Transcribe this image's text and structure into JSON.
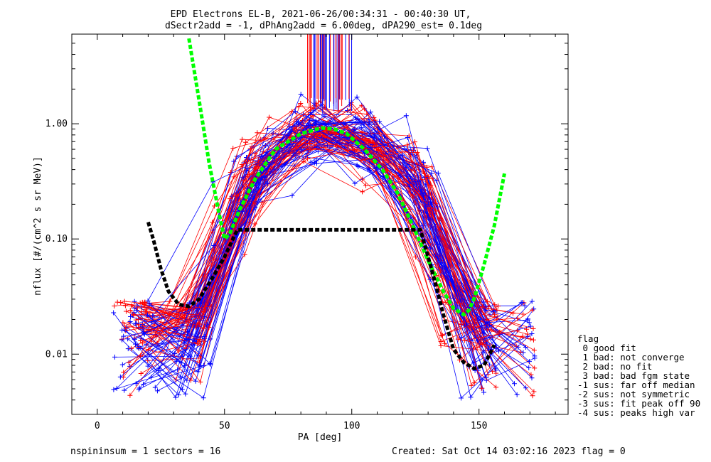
{
  "chart_data": {
    "type": "scatter",
    "title": "EPD Electrons EL-B, 2021-06-26/00:34:31 - 00:40:30 UT,",
    "subtitle": "dSectr2add = -1, dPhAng2add = 6.00deg, dPA290_est=   0.1deg",
    "xlabel": "PA [deg]",
    "ylabel": "nflux [#/(cm^2 s sr MeV)]",
    "xlim": [
      -10,
      185
    ],
    "ylim": [
      0.003,
      6
    ],
    "yscale": "log",
    "x_ticks": [
      "0",
      "50",
      "100",
      "150"
    ],
    "x_tick_values": [
      0,
      50,
      100,
      150
    ],
    "y_ticks": [
      "0.01",
      "0.10",
      "1.00"
    ],
    "y_tick_values": [
      0.01,
      0.1,
      1.0
    ],
    "series": [
      {
        "color": "#00ff00",
        "style": "dashed-thick",
        "x": [
          36,
          40,
          44,
          48,
          50,
          52,
          56,
          62,
          70,
          80,
          88,
          93,
          98,
          105,
          112,
          118,
          124,
          130,
          136,
          140,
          144,
          146,
          148,
          150,
          152,
          156,
          160
        ],
        "y": [
          5.5,
          1.6,
          0.45,
          0.16,
          0.1,
          0.11,
          0.18,
          0.33,
          0.6,
          0.82,
          0.92,
          0.9,
          0.82,
          0.6,
          0.4,
          0.25,
          0.13,
          0.065,
          0.035,
          0.025,
          0.022,
          0.024,
          0.03,
          0.042,
          0.06,
          0.13,
          0.37
        ]
      },
      {
        "color": "#000000",
        "style": "dashed-thick",
        "x": [
          20,
          22,
          25,
          28,
          32,
          36,
          40,
          45,
          50,
          55,
          127,
          130,
          133,
          136,
          140,
          144,
          148,
          152,
          156
        ],
        "y": [
          0.14,
          0.1,
          0.055,
          0.035,
          0.027,
          0.026,
          0.03,
          0.045,
          0.07,
          0.12,
          0.12,
          0.07,
          0.04,
          0.022,
          0.011,
          0.0085,
          0.0075,
          0.008,
          0.012
        ]
      }
    ],
    "legend": {
      "position": "right",
      "title": "flag",
      "entries": [
        " 0 good fit",
        " 1 bad: not converge",
        " 2 bad: no fit",
        " 3 bad: bad fgm state",
        "-1 sus: far off median",
        "-2 sus: not symmetric",
        "-3 sus: fit peak off 90",
        "-4 sus: peaks high var"
      ]
    },
    "footer": {
      "left": "nspininsum =  1  sectors = 16",
      "right": "Created: Sat Oct 14 03:02:16 2023   flag = 0"
    },
    "trace_colors": [
      "#ff0000",
      "#0000ff"
    ],
    "grid": false
  }
}
